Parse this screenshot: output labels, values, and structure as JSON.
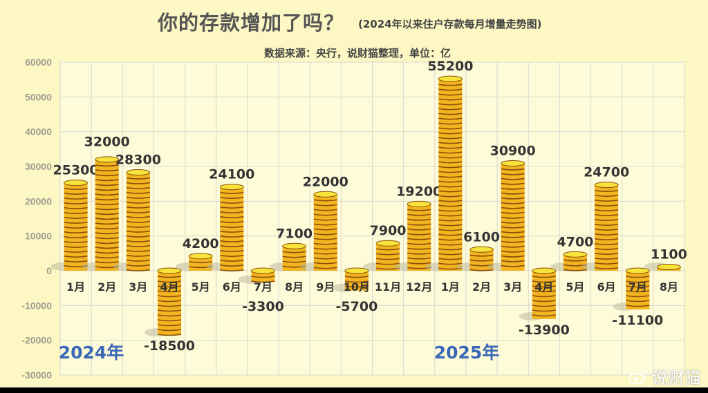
{
  "chart_data": {
    "type": "bar",
    "title": "你的存款增加了吗？",
    "subtitle": "(2024年以来住户存款每月增量走势图)",
    "source": "数据来源：央行，说财猫整理，单位：亿",
    "categories": [
      "1月",
      "2月",
      "3月",
      "4月",
      "5月",
      "6月",
      "7月",
      "8月",
      "9月",
      "10月",
      "11月",
      "12月",
      "1月",
      "2月",
      "3月",
      "4月",
      "5月",
      "6月",
      "7月",
      "8月"
    ],
    "values": [
      25300,
      32000,
      28300,
      -18500,
      4200,
      24100,
      -3300,
      7100,
      22000,
      -5700,
      7900,
      19200,
      55200,
      6100,
      30900,
      -13900,
      4700,
      24700,
      -11100,
      1100
    ],
    "data_labels": [
      "25300",
      "32000",
      "28300",
      "-18500",
      "4200",
      "24100",
      "-3300",
      "7100",
      "22000",
      "-5700",
      "7900",
      "19200",
      "55200",
      "6100",
      "30900",
      "-13900",
      "4700",
      "24700",
      "-11100",
      "1100"
    ],
    "year_labels": [
      "2024年",
      "2025年"
    ],
    "ylim": [
      -30000,
      60000
    ],
    "yticks": [
      "60000",
      "50000",
      "40000",
      "30000",
      "20000",
      "10000",
      "0",
      "-10000",
      "-20000",
      "-30000"
    ],
    "grid": true,
    "bar_style": "gold coin stacks",
    "colors": {
      "coin": "#f2b51f",
      "coin_top": "#f7e33a",
      "coin_line": "#8a4f0c",
      "background": "#fdf8c3",
      "year": "#3a68b8"
    }
  },
  "watermark": "说财猫"
}
